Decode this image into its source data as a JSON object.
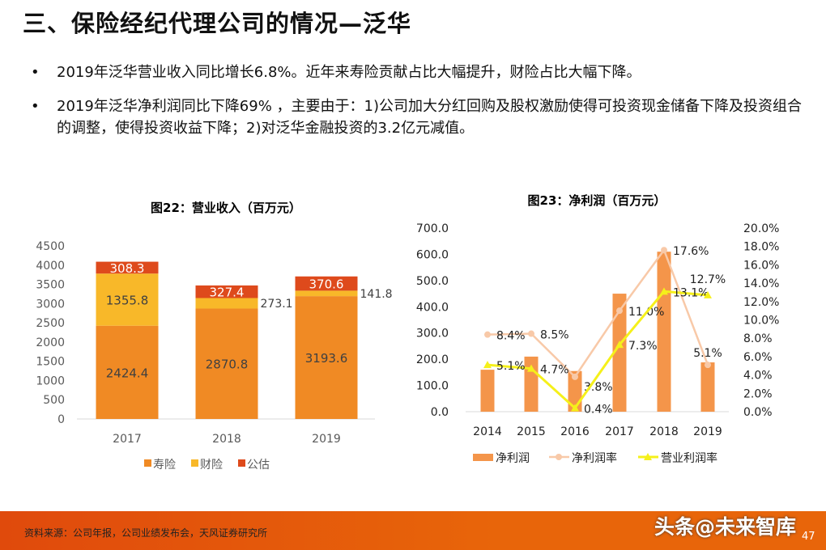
{
  "title": "三、保险经纪代理公司的情况—泛华",
  "bullets": [
    "2019年泛华营业收入同比增长6.8%。近年来寿险贡献占比大幅提升，财险占比大幅下降。",
    "2019年泛华净利润同比下降69% ，主要由于：1)公司加大分红回购及股权激励使得可投资现金储备下降及投资组合的调整，使得投资收益下降；2)对泛华金融投资的3.2亿元减值。"
  ],
  "bullet_symbol": "•",
  "footer": {
    "source": "资料来源：公司年报，公司业绩发布会，天风证券研究所",
    "watermark": "头条@未来智库",
    "page": "47"
  },
  "chart_data": [
    {
      "type": "bar",
      "stacked": true,
      "title": "图22：营业收入（百万元）",
      "categories": [
        "2017",
        "2018",
        "2019"
      ],
      "ylim": [
        0,
        4500
      ],
      "yticks": [
        "0",
        "500",
        "1000",
        "1500",
        "2000",
        "2500",
        "3000",
        "3500",
        "4000",
        "4500"
      ],
      "series": [
        {
          "name": "寿险",
          "values": [
            2424.4,
            2870.8,
            3193.6
          ],
          "labels": [
            "2424.4",
            "2870.8",
            "3193.6"
          ],
          "color": "#f08a24"
        },
        {
          "name": "财险",
          "values": [
            1355.8,
            273.1,
            141.8
          ],
          "labels": [
            "1355.8",
            "273.1",
            "141.8"
          ],
          "color": "#f8b829"
        },
        {
          "name": "公估",
          "values": [
            308.3,
            327.4,
            370.6
          ],
          "labels": [
            "308.3",
            "327.4",
            "370.6"
          ],
          "color": "#de4a1c"
        }
      ],
      "legend": "bottom"
    },
    {
      "type": "bar+line",
      "title": "图23：净利润（百万元）",
      "categories": [
        "2014",
        "2015",
        "2016",
        "2017",
        "2018",
        "2019"
      ],
      "ylim": [
        0,
        700
      ],
      "yticks": [
        "0.0",
        "100.0",
        "200.0",
        "300.0",
        "400.0",
        "500.0",
        "600.0",
        "700.0"
      ],
      "y2lim": [
        0,
        20
      ],
      "y2ticks": [
        "0.0%",
        "2.0%",
        "4.0%",
        "6.0%",
        "8.0%",
        "10.0%",
        "12.0%",
        "14.0%",
        "16.0%",
        "18.0%",
        "20.0%"
      ],
      "series": [
        {
          "name": "净利润",
          "kind": "bar",
          "axis": "left",
          "values": [
            160,
            210,
            155,
            450,
            610,
            188
          ],
          "color": "#f4954a"
        },
        {
          "name": "净利润率",
          "kind": "line",
          "axis": "right",
          "values": [
            8.4,
            8.5,
            3.8,
            11.0,
            17.6,
            5.1
          ],
          "labels": [
            "8.4%",
            "8.5%",
            "3.8%",
            "11.0%",
            "17.6%",
            "5.1%"
          ],
          "color": "#f8c9a8"
        },
        {
          "name": "营业利润率",
          "kind": "line",
          "axis": "right",
          "values": [
            5.1,
            4.7,
            0.4,
            7.3,
            13.1,
            12.7
          ],
          "labels": [
            "5.1%",
            "4.7%",
            "0.4%",
            "7.3%",
            "13.1%",
            "12.7%"
          ],
          "color": "#f5f01a"
        }
      ],
      "legend": "bottom"
    }
  ]
}
